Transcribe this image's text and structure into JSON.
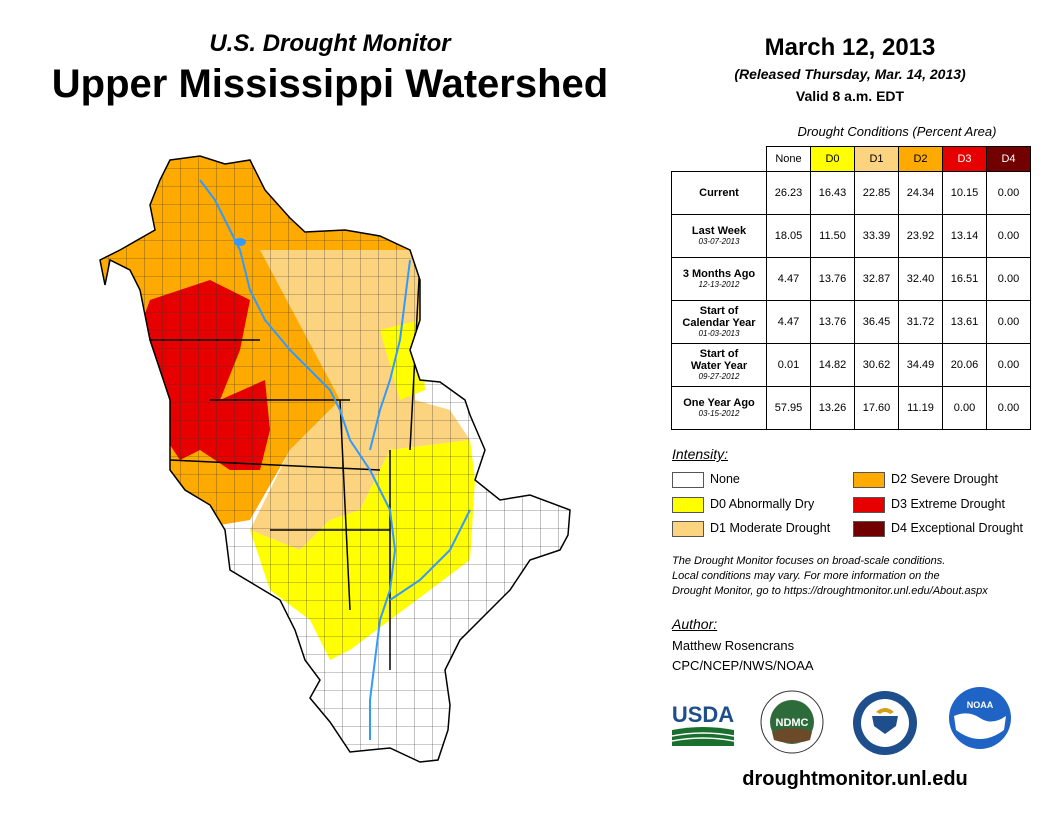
{
  "header": {
    "subtitle": "U.S. Drought Monitor",
    "title": "Upper Mississippi Watershed",
    "date": "March 12, 2013",
    "released": "(Released Thursday, Mar. 14, 2013)",
    "valid": "Valid 8 a.m. EDT"
  },
  "table": {
    "caption": "Drought Conditions (Percent Area)",
    "columns": [
      {
        "label": "None",
        "color": "#ffffff",
        "text_color": "#000000"
      },
      {
        "label": "D0",
        "color": "#ffff00",
        "text_color": "#000000"
      },
      {
        "label": "D1",
        "color": "#fcd37f",
        "text_color": "#000000"
      },
      {
        "label": "D2",
        "color": "#ffaa00",
        "text_color": "#000000"
      },
      {
        "label": "D3",
        "color": "#e60000",
        "text_color": "#ffffff"
      },
      {
        "label": "D4",
        "color": "#730000",
        "text_color": "#ffffff"
      }
    ],
    "rows": [
      {
        "label": "Current",
        "label2": "",
        "date": "",
        "values": [
          "26.23",
          "16.43",
          "22.85",
          "24.34",
          "10.15",
          "0.00"
        ]
      },
      {
        "label": "Last Week",
        "label2": "",
        "date": "03-07-2013",
        "values": [
          "18.05",
          "11.50",
          "33.39",
          "23.92",
          "13.14",
          "0.00"
        ]
      },
      {
        "label": "3 Months Ago",
        "label2": "",
        "date": "12-13-2012",
        "values": [
          "4.47",
          "13.76",
          "32.87",
          "32.40",
          "16.51",
          "0.00"
        ]
      },
      {
        "label": "Start of",
        "label2": "Calendar Year",
        "date": "01-03-2013",
        "values": [
          "4.47",
          "13.76",
          "36.45",
          "31.72",
          "13.61",
          "0.00"
        ]
      },
      {
        "label": "Start of",
        "label2": "Water Year",
        "date": "09-27-2012",
        "values": [
          "0.01",
          "14.82",
          "30.62",
          "34.49",
          "20.06",
          "0.00"
        ]
      },
      {
        "label": "One Year Ago",
        "label2": "",
        "date": "03-15-2012",
        "values": [
          "57.95",
          "13.26",
          "17.60",
          "11.19",
          "0.00",
          "0.00"
        ]
      }
    ]
  },
  "legend": {
    "title": "Intensity:",
    "items": [
      {
        "label": "None",
        "color": "#ffffff"
      },
      {
        "label": "D0 Abnormally Dry",
        "color": "#ffff00"
      },
      {
        "label": "D1 Moderate Drought",
        "color": "#fcd37f"
      },
      {
        "label": "D2 Severe Drought",
        "color": "#ffaa00"
      },
      {
        "label": "D3 Extreme Drought",
        "color": "#e60000"
      },
      {
        "label": "D4 Exceptional Drought",
        "color": "#730000"
      }
    ]
  },
  "note": {
    "line1": "The Drought Monitor focuses on broad-scale conditions.",
    "line2": "Local conditions may vary. For more information on the",
    "line3": "Drought Monitor, go to https://droughtmonitor.unl.edu/About.aspx"
  },
  "author": {
    "label": "Author:",
    "name": "Matthew Rosencrans",
    "org": "CPC/NCEP/NWS/NOAA"
  },
  "logos": {
    "usda": "USDA",
    "ndmc": "NDMC",
    "noaa": "NOAA"
  },
  "website": "droughtmonitor.unl.edu",
  "map": {
    "water_color": "#3399ff",
    "regions": [
      "D2",
      "D3",
      "D1",
      "D0",
      "None"
    ]
  }
}
